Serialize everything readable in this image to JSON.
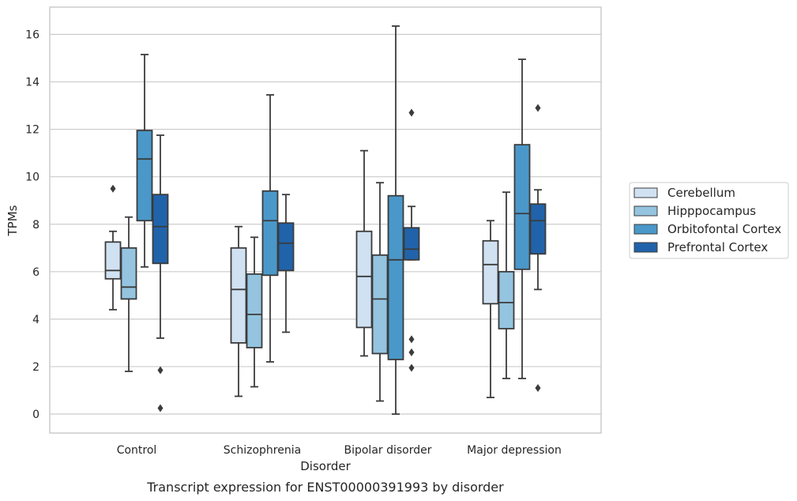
{
  "chart_data": {
    "type": "box",
    "caption": "Transcript expression for ENST00000391993 by disorder",
    "xlabel": "Disorder",
    "ylabel": "TPMs",
    "ylim": [
      -0.8,
      17.1
    ],
    "yticks": [
      0,
      2,
      4,
      6,
      8,
      10,
      12,
      14,
      16
    ],
    "grid": true,
    "legend_position": "right",
    "categories": [
      "Control",
      "Schizophrenia",
      "Bipolar disorder",
      "Major depression"
    ],
    "series": [
      {
        "name": "Cerebellum",
        "color": "#d0e1f2",
        "boxes": [
          {
            "whislo": 4.4,
            "q1": 5.7,
            "med": 6.05,
            "q3": 7.25,
            "whishi": 7.7,
            "fliers": [
              9.5
            ]
          },
          {
            "whislo": 0.75,
            "q1": 3.0,
            "med": 5.25,
            "q3": 7.0,
            "whishi": 7.9,
            "fliers": []
          },
          {
            "whislo": 2.45,
            "q1": 3.65,
            "med": 5.8,
            "q3": 7.7,
            "whishi": 11.1,
            "fliers": []
          },
          {
            "whislo": 0.7,
            "q1": 4.65,
            "med": 6.3,
            "q3": 7.3,
            "whishi": 8.15,
            "fliers": []
          }
        ]
      },
      {
        "name": "Hipppocampus",
        "color": "#94c4df",
        "boxes": [
          {
            "whislo": 1.8,
            "q1": 4.85,
            "med": 5.35,
            "q3": 7.0,
            "whishi": 8.3,
            "fliers": []
          },
          {
            "whislo": 1.15,
            "q1": 2.8,
            "med": 4.2,
            "q3": 5.9,
            "whishi": 7.45,
            "fliers": []
          },
          {
            "whislo": 0.55,
            "q1": 2.55,
            "med": 4.85,
            "q3": 6.7,
            "whishi": 9.75,
            "fliers": []
          },
          {
            "whislo": 1.5,
            "q1": 3.6,
            "med": 4.7,
            "q3": 6.0,
            "whishi": 9.35,
            "fliers": []
          }
        ]
      },
      {
        "name": "Orbitofontal Cortex",
        "color": "#4a98c9",
        "boxes": [
          {
            "whislo": 6.2,
            "q1": 8.15,
            "med": 10.75,
            "q3": 11.95,
            "whishi": 15.15,
            "fliers": []
          },
          {
            "whislo": 2.2,
            "q1": 5.85,
            "med": 8.15,
            "q3": 9.4,
            "whishi": 13.45,
            "fliers": []
          },
          {
            "whislo": 0.0,
            "q1": 2.3,
            "med": 6.5,
            "q3": 9.2,
            "whishi": 16.35,
            "fliers": []
          },
          {
            "whislo": 1.5,
            "q1": 6.1,
            "med": 8.45,
            "q3": 11.35,
            "whishi": 14.95,
            "fliers": []
          }
        ]
      },
      {
        "name": "Prefrontal Cortex",
        "color": "#2163aa",
        "boxes": [
          {
            "whislo": 3.2,
            "q1": 6.35,
            "med": 7.9,
            "q3": 9.25,
            "whishi": 11.75,
            "fliers": [
              1.85,
              0.25
            ]
          },
          {
            "whislo": 3.45,
            "q1": 6.05,
            "med": 7.2,
            "q3": 8.05,
            "whishi": 9.25,
            "fliers": []
          },
          {
            "whislo": 6.5,
            "q1": 6.5,
            "med": 6.95,
            "q3": 7.85,
            "whishi": 8.75,
            "fliers": [
              12.7,
              3.15,
              2.6,
              1.95
            ]
          },
          {
            "whislo": 5.25,
            "q1": 6.75,
            "med": 8.15,
            "q3": 8.85,
            "whishi": 9.45,
            "fliers": [
              12.9,
              1.1
            ]
          }
        ]
      }
    ]
  }
}
